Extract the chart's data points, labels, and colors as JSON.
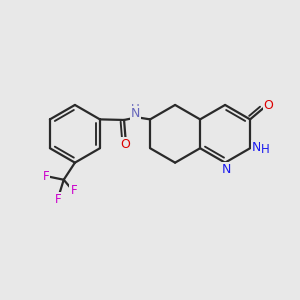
{
  "bg_color": "#e8e8e8",
  "bond_color": "#2a2a2a",
  "bond_lw": 1.6,
  "font_size_atom": 8.5,
  "N_color": "#1a1aee",
  "O_color": "#dd0000",
  "F_color": "#cc00cc",
  "NH_color": "#6666bb",
  "figsize": [
    3.0,
    3.0
  ],
  "dpi": 100,
  "xlim": [
    0,
    10
  ],
  "ylim": [
    0,
    10
  ]
}
